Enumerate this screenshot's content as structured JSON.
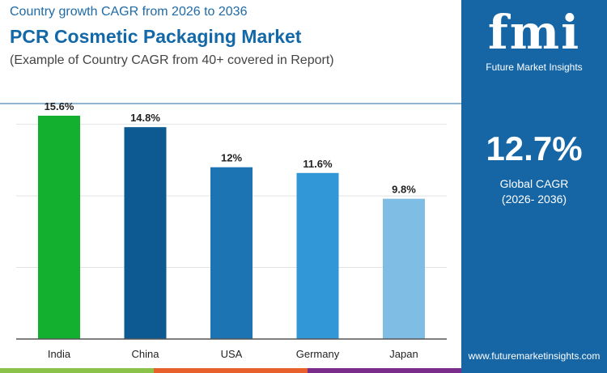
{
  "header": {
    "subtitle": "Country growth CAGR from 2026 to 2036",
    "title": "PCR Cosmetic Packaging Market",
    "note": "(Example of Country CAGR from 40+ covered in Report)"
  },
  "panel": {
    "logo": "fmi",
    "brand": "Future Market Insights",
    "value": "12.7%",
    "label": "Global CAGR",
    "period": "(2026- 2036)",
    "url": "www.futuremarketinsights.com",
    "bg": "#1666a6"
  },
  "chart_data": {
    "type": "bar",
    "categories": [
      "India",
      "China",
      "USA",
      "Germany",
      "Japan"
    ],
    "values": [
      15.6,
      14.8,
      12,
      11.6,
      9.8
    ],
    "labels": [
      "15.6%",
      "14.8%",
      "12%",
      "11.6%",
      "9.8%"
    ],
    "colors": [
      "#12b02e",
      "#0c5a91",
      "#1d74b3",
      "#3297d6",
      "#7fbde4"
    ],
    "ylim": [
      0,
      15.6
    ],
    "grid": true
  }
}
